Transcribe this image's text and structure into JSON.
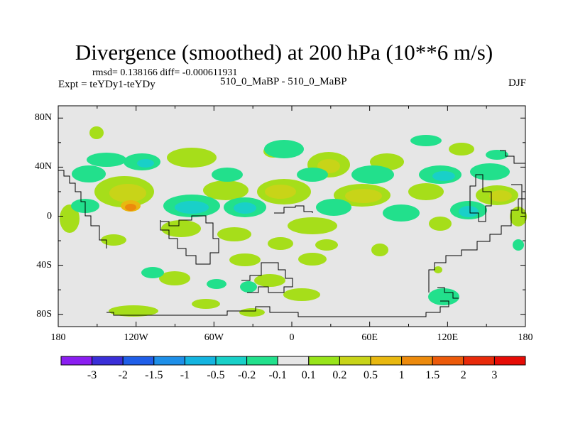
{
  "title": "Divergence (smoothed) at 200 hPa (10**6 m/s)",
  "stats": "rmsd= 0.138166  diff= -0.000611931",
  "left_label": "Expt = teYDy1-teYDy",
  "center_label": "510_0_MaBP - 510_0_MaBP",
  "right_label": "DJF",
  "axes": {
    "y_ticks": [
      "80N",
      "40N",
      "0",
      "40S",
      "80S"
    ],
    "y_values": [
      80,
      40,
      0,
      -40,
      -80
    ],
    "x_ticks": [
      "180",
      "120W",
      "60W",
      "0",
      "60E",
      "120E",
      "180"
    ],
    "x_values": [
      -180,
      -120,
      -60,
      0,
      60,
      120,
      180
    ],
    "lon_range": [
      -180,
      180
    ],
    "lat_range": [
      -90,
      90
    ]
  },
  "colorbar": {
    "labels": [
      "-3",
      "-2",
      "-1.5",
      "-1",
      "-0.5",
      "-0.2",
      "-0.1",
      "0.1",
      "0.2",
      "0.5",
      "1",
      "1.5",
      "2",
      "3"
    ],
    "colors": [
      "#8a1ef0",
      "#3a2fd8",
      "#1f5ee8",
      "#1e8fe8",
      "#14b4e0",
      "#19d0c8",
      "#22e08c",
      "#e6e6e6",
      "#98e41a",
      "#c8d418",
      "#e8b810",
      "#ec8a0c",
      "#ec5a0a",
      "#e82a0a",
      "#e60c06"
    ]
  },
  "background_color": "#e6e6e6",
  "chart_data": {
    "type": "map-contour",
    "variable": "Divergence (smoothed)",
    "level": "200 hPa",
    "units": "10**6 m/s",
    "season": "DJF",
    "levels": [
      -3,
      -2,
      -1.5,
      -1,
      -0.5,
      -0.2,
      -0.1,
      0.1,
      0.2,
      0.5,
      1,
      1.5,
      2,
      3
    ]
  }
}
